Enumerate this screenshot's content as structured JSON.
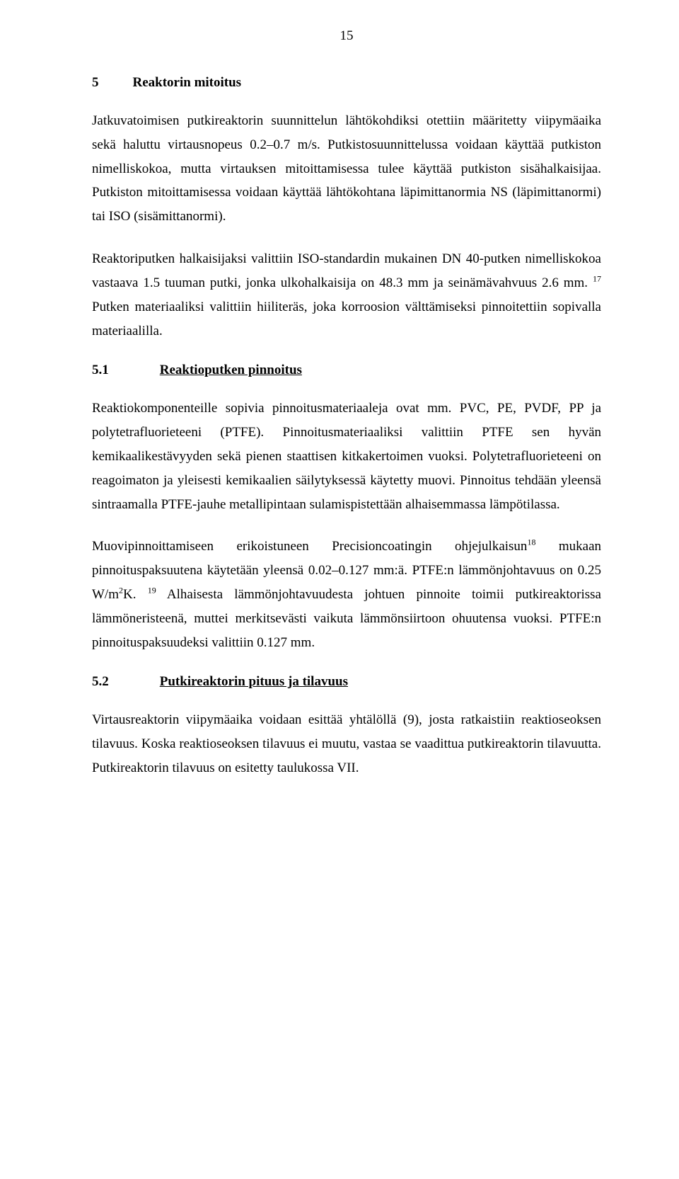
{
  "page_number": "15",
  "heading": {
    "num": "5",
    "title": "Reaktorin mitoitus"
  },
  "para1": "Jatkuvatoimisen putkireaktorin suunnittelun lähtökohdiksi otettiin määritetty viipymäaika sekä haluttu virtausnopeus 0.2–0.7 m/s. Putkistosuunnittelussa voidaan käyttää putkiston nimelliskokoa, mutta virtauksen mitoittamisessa tulee käyttää putkiston sisähalkaisijaa. Putkiston mitoittamisessa voidaan käyttää lähtökohtana läpimittanormia NS (läpimittanormi) tai ISO (sisämittanormi).",
  "para2_a": "Reaktoriputken halkaisijaksi valittiin ISO-standardin mukainen DN 40-putken nimelliskokoa vastaava 1.5 tuuman putki, jonka ulkohalkaisija on 48.3 mm ja seinämävahvuus 2.6 mm. ",
  "para2_sup": "17",
  "para2_b": " Putken materiaaliksi valittiin hiiliteräs, joka korroosion välttämiseksi pinnoitettiin sopivalla materiaalilla.",
  "sub1": {
    "num": "5.1",
    "title": "Reaktioputken pinnoitus"
  },
  "para3": "Reaktiokomponenteille sopivia pinnoitusmateriaaleja ovat mm. PVC, PE, PVDF, PP ja polytetrafluorieteeni (PTFE). Pinnoitusmateriaaliksi valittiin PTFE sen hyvän kemikaalikestävyyden sekä pienen staattisen kitkakertoimen vuoksi. Polytetrafluorieteeni on reagoimaton ja yleisesti kemikaalien säilytyksessä käytetty muovi. Pinnoitus tehdään yleensä sintraamalla PTFE-jauhe metallipintaan sulamispistettään alhaisemmassa lämpötilassa.",
  "para4_a": "Muovipinnoittamiseen erikoistuneen Precisioncoatingin ohjejulkaisun",
  "para4_sup1": "18",
  "para4_b": " mukaan pinnoituspaksuutena käytetään yleensä 0.02–0.127 mm:ä. PTFE:n lämmön­johtavuus on 0.25 W/m",
  "para4_supK": "2",
  "para4_c": "K. ",
  "para4_sup2": "19",
  "para4_d": " Alhaisesta lämmönjohtavuudesta johtuen pinnoite toimii putkireaktorissa lämmöneristeenä, muttei merkitsevästi vaikuta lämmön­siirtoon ohuutensa vuoksi. PTFE:n pinnoituspaksuudeksi valittiin 0.127 mm.",
  "sub2": {
    "num": "5.2",
    "title": "Putkireaktorin pituus ja tilavuus"
  },
  "para5": "Virtausreaktorin viipymäaika voidaan esittää yhtälöllä (9), josta ratkaistiin reaktioseoksen tilavuus. Koska reaktioseoksen tilavuus ei muutu, vastaa se vaadittua putkireaktorin tilavuutta. Putkireaktorin tilavuus on esitetty taulukossa VII."
}
